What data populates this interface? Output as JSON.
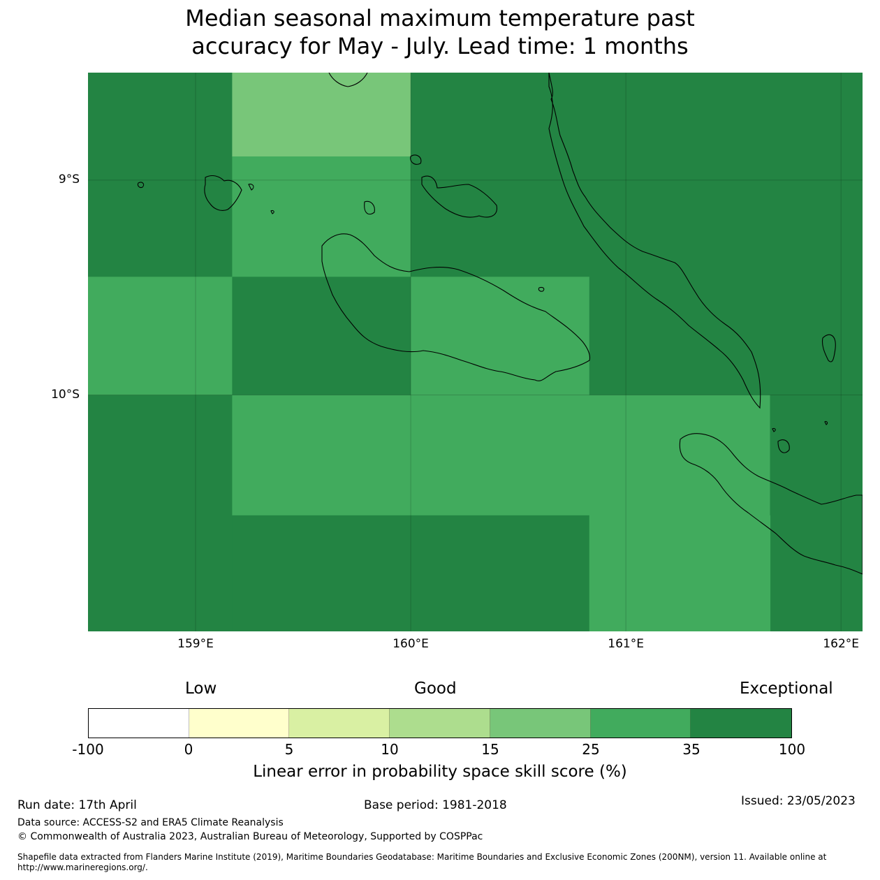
{
  "title_line1": "Median seasonal maximum temperature past",
  "title_line2": "accuracy for May - July. Lead time: 1 months",
  "map": {
    "lon_range": [
      158.5,
      162.1
    ],
    "lat_range": [
      -11.1,
      -8.5
    ],
    "lat_ticks": [
      {
        "value": -9,
        "label": "9°S"
      },
      {
        "value": -10,
        "label": "10°S"
      }
    ],
    "lon_ticks": [
      {
        "value": 159,
        "label": "159°E"
      },
      {
        "value": 160,
        "label": "160°E"
      },
      {
        "value": 161,
        "label": "161°E"
      },
      {
        "value": 162,
        "label": "162°E"
      }
    ],
    "grid_cells": [
      {
        "lon": [
          158.5,
          159.17
        ],
        "lat": [
          -8.5,
          -9.45
        ],
        "class": 6
      },
      {
        "lon": [
          159.17,
          160.0
        ],
        "lat": [
          -8.5,
          -8.89
        ],
        "class": 4
      },
      {
        "lon": [
          159.17,
          160.0
        ],
        "lat": [
          -8.89,
          -9.45
        ],
        "class": 5
      },
      {
        "lon": [
          160.0,
          162.1
        ],
        "lat": [
          -8.5,
          -9.45
        ],
        "class": 6
      },
      {
        "lon": [
          158.5,
          159.17
        ],
        "lat": [
          -9.45,
          -10.0
        ],
        "class": 5
      },
      {
        "lon": [
          159.17,
          160.0
        ],
        "lat": [
          -9.45,
          -10.0
        ],
        "class": 6
      },
      {
        "lon": [
          160.0,
          160.83
        ],
        "lat": [
          -9.45,
          -10.0
        ],
        "class": 5
      },
      {
        "lon": [
          160.83,
          162.1
        ],
        "lat": [
          -9.45,
          -10.0
        ],
        "class": 6
      },
      {
        "lon": [
          158.5,
          159.17
        ],
        "lat": [
          -10.0,
          -11.1
        ],
        "class": 6
      },
      {
        "lon": [
          159.17,
          161.67
        ],
        "lat": [
          -10.0,
          -10.56
        ],
        "class": 5
      },
      {
        "lon": [
          161.67,
          162.1
        ],
        "lat": [
          -10.0,
          -11.1
        ],
        "class": 6
      },
      {
        "lon": [
          159.17,
          160.83
        ],
        "lat": [
          -10.56,
          -11.1
        ],
        "class": 6
      },
      {
        "lon": [
          160.83,
          161.67
        ],
        "lat": [
          -10.56,
          -11.1
        ],
        "class": 5
      }
    ]
  },
  "legend": {
    "categories": {
      "low": "Low",
      "good": "Good",
      "exceptional": "Exceptional"
    },
    "bins": [
      {
        "from": -100,
        "to": 0,
        "color": "#ffffff"
      },
      {
        "from": 0,
        "to": 5,
        "color": "#ffffcc"
      },
      {
        "from": 5,
        "to": 10,
        "color": "#d9f0a3"
      },
      {
        "from": 10,
        "to": 15,
        "color": "#addd8e"
      },
      {
        "from": 15,
        "to": 25,
        "color": "#78c679"
      },
      {
        "from": 25,
        "to": 35,
        "color": "#41ab5d"
      },
      {
        "from": 35,
        "to": 100,
        "color": "#238443"
      }
    ],
    "ticks": [
      "-100",
      "0",
      "5",
      "10",
      "15",
      "25",
      "35",
      "100"
    ],
    "label": "Linear error in probability space skill score (%)"
  },
  "footer": {
    "run_date": "Run date: 17th April",
    "base_period": "Base period: 1981-2018",
    "issued": "Issued: 23/05/2023",
    "data_source": "Data source: ACCESS-S2 and ERA5 Climate Reanalysis",
    "copyright": "© Commonwealth of Australia 2023, Australian Bureau of Meteorology, Supported by COSPPac",
    "shapefile_line1": "Shapefile data extracted from Flanders Marine Institute (2019), Maritime Boundaries Geodatabase: Maritime Boundaries and Exclusive Economic Zones (200NM), version 11. Available online at",
    "shapefile_line2": "http://www.marineregions.org/."
  }
}
